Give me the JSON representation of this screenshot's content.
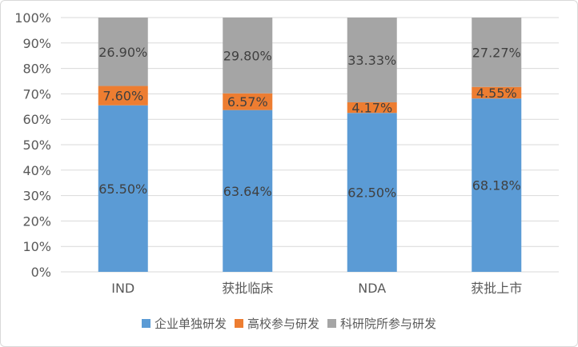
{
  "chart_data": {
    "type": "bar",
    "stacked": true,
    "normalized": true,
    "categories": [
      "IND",
      "获批临床",
      "NDA",
      "获批上市"
    ],
    "series": [
      {
        "name": "企业单独研发",
        "color": "#5b9bd5",
        "values": [
          65.5,
          63.64,
          62.5,
          68.18
        ],
        "labels": [
          "65.50%",
          "63.64%",
          "62.50%",
          "68.18%"
        ]
      },
      {
        "name": "高校参与研发",
        "color": "#ed7d31",
        "values": [
          7.6,
          6.57,
          4.17,
          4.55
        ],
        "labels": [
          "7.60%",
          "6.57%",
          "4.17%",
          "4.55%"
        ]
      },
      {
        "name": "科研院所参与研发",
        "color": "#a5a5a5",
        "values": [
          26.9,
          29.8,
          33.33,
          27.27
        ],
        "labels": [
          "26.90%",
          "29.80%",
          "33.33%",
          "27.27%"
        ]
      }
    ],
    "ylim": [
      0,
      100
    ],
    "yticks": [
      "0%",
      "10%",
      "20%",
      "30%",
      "40%",
      "50%",
      "60%",
      "70%",
      "80%",
      "90%",
      "100%"
    ],
    "grid": true,
    "legend_position": "bottom"
  }
}
